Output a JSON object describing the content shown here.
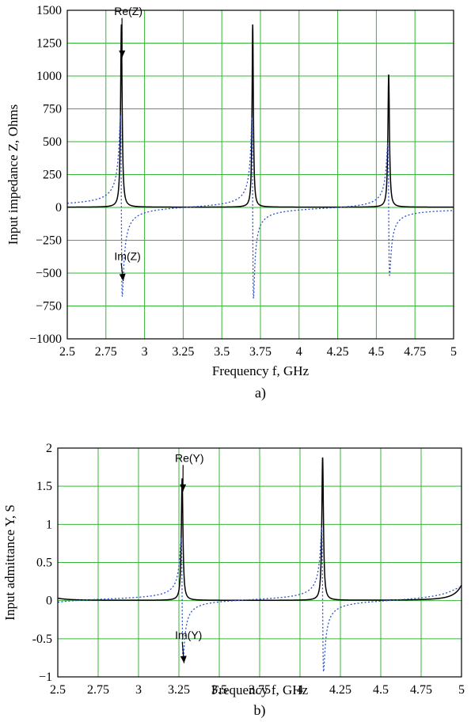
{
  "chart_data": [
    {
      "type": "line",
      "panel_label": "a)",
      "xlabel": "Frequency f, GHz",
      "ylabel": "Input impedance Z, Ohms",
      "xlim": [
        2.5,
        5
      ],
      "ylim": [
        -1000,
        1500
      ],
      "xticks": [
        2.5,
        2.75,
        3,
        3.25,
        3.5,
        3.75,
        4,
        4.25,
        4.5,
        4.75,
        5
      ],
      "xtick_labels": [
        "2.5",
        "2.75",
        "3",
        "3.25",
        "3.5",
        "3.75",
        "4",
        "4.25",
        "4.5",
        "4.75",
        "5"
      ],
      "yticks": [
        -1000,
        -750,
        -500,
        -250,
        0,
        250,
        500,
        750,
        1000,
        1250,
        1500
      ],
      "ytick_labels": [
        "−1000",
        "−750",
        "−500",
        "−250",
        "0",
        "250",
        "500",
        "750",
        "1000",
        "1250",
        "1500"
      ],
      "grid": true,
      "colors": {
        "grid": "#37b537",
        "frame": "#000000",
        "real": "#000000",
        "imag": "#2b4fc8"
      },
      "series": [
        {
          "name": "Re(Z)",
          "style": "solid",
          "resonances": [
            {
              "f": 2.85,
              "peak": 1390,
              "width": 0.006
            },
            {
              "f": 3.7,
              "peak": 1390,
              "width": 0.005
            },
            {
              "f": 4.58,
              "peak": 1010,
              "width": 0.006
            }
          ],
          "baseline": 2
        },
        {
          "name": "Im(Z)",
          "style": "dotted",
          "resonances": [
            {
              "f": 2.85,
              "peak": 1380,
              "width": 0.006
            },
            {
              "f": 3.7,
              "peak": 1380,
              "width": 0.005
            },
            {
              "f": 4.58,
              "peak": 1010,
              "width": 0.006
            }
          ],
          "clip": [
            -820,
            820
          ]
        }
      ],
      "annotations": [
        {
          "text": "Re(Z)",
          "x": 2.895,
          "y": 1465,
          "arrow_to": [
            2.855,
            1140
          ]
        },
        {
          "text": "Im(Z)",
          "x": 2.89,
          "y": -400,
          "arrow_to": [
            2.862,
            -560
          ]
        }
      ]
    },
    {
      "type": "line",
      "panel_label": "b)",
      "xlabel": "Frequency f, GHz",
      "ylabel": "Input admittance Y, S",
      "xlim": [
        2.5,
        5
      ],
      "ylim": [
        -1,
        2
      ],
      "xticks": [
        2.5,
        2.75,
        3,
        3.25,
        3.5,
        3.75,
        4,
        4.25,
        4.5,
        4.75,
        5
      ],
      "xtick_labels": [
        "2.5",
        "2.75",
        "3",
        "3.25",
        "3.5",
        "3.75",
        "4",
        "4.25",
        "4.5",
        "4.75",
        "5"
      ],
      "yticks": [
        -1,
        -0.5,
        0,
        0.5,
        1,
        1.5,
        2
      ],
      "ytick_labels": [
        "−1",
        "-0.5",
        "0",
        "0.5",
        "1",
        "1.5",
        "2"
      ],
      "grid": true,
      "colors": {
        "grid": "#37b537",
        "frame": "#000000",
        "real": "#000000",
        "imag": "#2b4fc8"
      },
      "series": [
        {
          "name": "Re(Y)",
          "style": "solid",
          "resonances": [
            {
              "f": 3.27,
              "peak": 1.6,
              "width": 0.006
            },
            {
              "f": 4.14,
              "peak": 1.88,
              "width": 0.006
            },
            {
              "f": 2.4,
              "peak": 0.11,
              "width": 0.06
            },
            {
              "f": 5.05,
              "peak": 0.4,
              "width": 0.05
            }
          ],
          "baseline": 0.003
        },
        {
          "name": "Im(Y)",
          "style": "dotted",
          "resonances": [
            {
              "f": 3.27,
              "peak": 1.6,
              "width": 0.006
            },
            {
              "f": 4.14,
              "peak": 1.88,
              "width": 0.006
            },
            {
              "f": 2.4,
              "peak": 0.11,
              "width": 0.06
            },
            {
              "f": 5.05,
              "peak": 0.4,
              "width": 0.05
            }
          ],
          "clip": [
            -0.95,
            0.95
          ]
        }
      ],
      "annotations": [
        {
          "text": "Re(Y)",
          "x": 3.315,
          "y": 1.82,
          "arrow_to": [
            3.275,
            1.43
          ]
        },
        {
          "text": "Im(Y)",
          "x": 3.31,
          "y": -0.5,
          "arrow_to": [
            3.282,
            -0.82
          ]
        }
      ]
    }
  ]
}
